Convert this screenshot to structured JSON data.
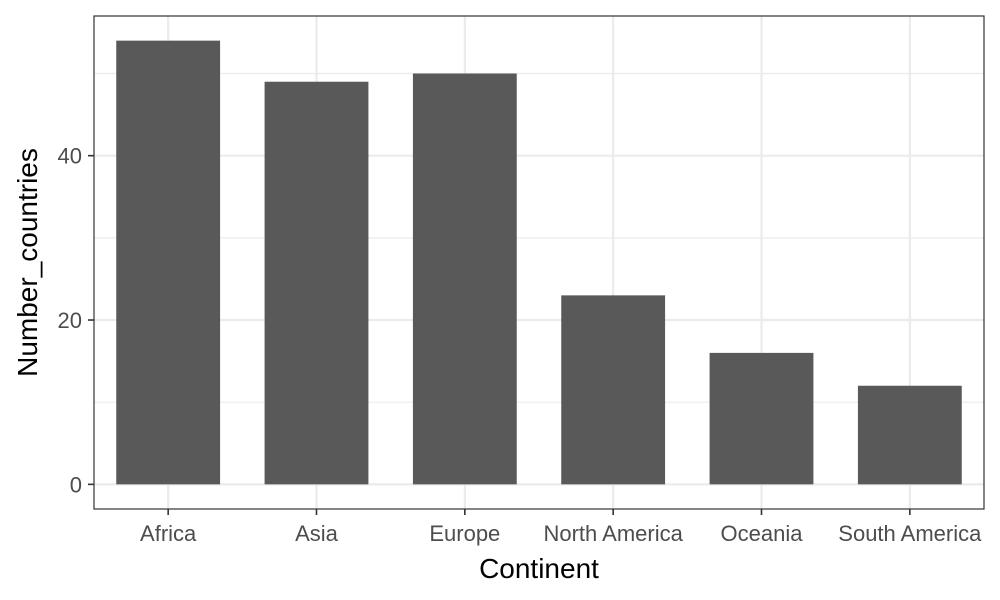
{
  "chart_data": {
    "type": "bar",
    "title": "",
    "xlabel": "Continent",
    "ylabel": "Number_countries",
    "categories": [
      "Africa",
      "Asia",
      "Europe",
      "North America",
      "Oceania",
      "South America"
    ],
    "values": [
      54,
      49,
      50,
      23,
      16,
      12
    ],
    "ylim": [
      -3,
      57
    ],
    "yticks": [
      0,
      20,
      40
    ],
    "ytick_labels": [
      "0",
      "20",
      "40"
    ],
    "grid": true,
    "legend": "none",
    "colors": {
      "bar": "#595959",
      "grid": "#ebebeb",
      "panel_border": "#333333",
      "tick_text": "#4d4d4d",
      "title_text": "#000000"
    }
  }
}
